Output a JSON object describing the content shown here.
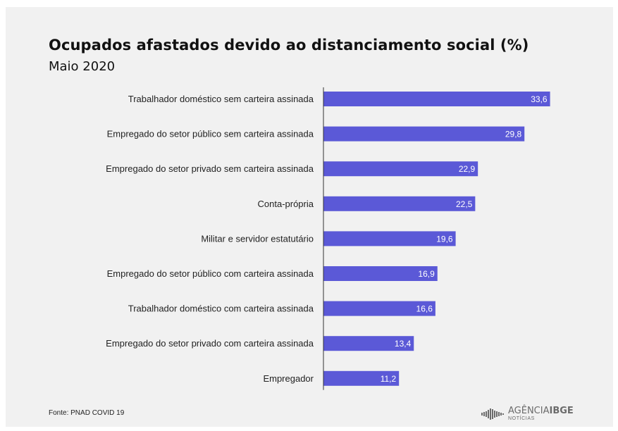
{
  "header": {
    "title": "Ocupados afastados devido ao distanciamento social (%)",
    "subtitle": "Maio 2020"
  },
  "footer": {
    "source": "Fonte: PNAD COVID 19",
    "logo_word1": "AGÊNCIA",
    "logo_word2": "IBGE",
    "logo_sub": "NOTÍCIAS"
  },
  "colors": {
    "bar": "#5b59d7",
    "axis": "#333333",
    "background": "#f1f1f1"
  },
  "chart_data": {
    "type": "bar",
    "orientation": "horizontal",
    "title": "Ocupados afastados devido ao distanciamento social (%)",
    "subtitle": "Maio 2020",
    "categories": [
      "Trabalhador doméstico sem carteira assinada",
      "Empregado do setor público sem carteira assinada",
      "Empregado do setor privado sem carteira assinada",
      "Conta-própria",
      "Militar e servidor estatutário",
      "Empregado do setor público com carteira assinada",
      "Trabalhador doméstico com carteira assinada",
      "Empregado do setor privado com carteira assinada",
      "Empregador"
    ],
    "values": [
      33.6,
      29.8,
      22.9,
      22.5,
      19.6,
      16.9,
      16.6,
      13.4,
      11.2
    ],
    "value_labels": [
      "33,6",
      "29,8",
      "22,9",
      "22,5",
      "19,6",
      "16,9",
      "16,6",
      "13,4",
      "11,2"
    ],
    "xlim": [
      0,
      35
    ],
    "grid": false,
    "legend": "none"
  }
}
